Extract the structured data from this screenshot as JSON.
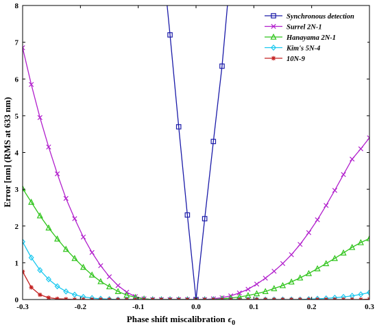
{
  "chart_data": {
    "type": "line",
    "title": "",
    "xlabel": "Phase shift miscalibration",
    "xlabel_symbol": "ϵ",
    "xlabel_subscript": "0",
    "ylabel": "Error [nm] (RMS at 633 nm)",
    "xlim": [
      -0.3,
      0.3
    ],
    "ylim": [
      0,
      8
    ],
    "x_ticks": [
      -0.3,
      -0.2,
      -0.1,
      0,
      0.1,
      0.2,
      0.3
    ],
    "x_tick_labels": [
      "-0.3",
      "-0.2",
      "-0.1",
      "0.0",
      "0.1",
      "0.2",
      "0.3"
    ],
    "y_ticks": [
      0,
      1,
      2,
      3,
      4,
      5,
      6,
      7,
      8
    ],
    "y_tick_labels": [
      "0",
      "1",
      "2",
      "3",
      "4",
      "5",
      "6",
      "7",
      "8"
    ],
    "grid": false,
    "legend_position": "top-right",
    "series": [
      {
        "name": "Synchronous detection",
        "color": "#1a1aa8",
        "marker": "square",
        "x": [
          -0.06,
          -0.045,
          -0.03,
          -0.015,
          0.0,
          0.015,
          0.03,
          0.045,
          0.06
        ],
        "y": [
          9.6,
          7.2,
          4.7,
          2.3,
          0.0,
          2.2,
          4.3,
          6.35,
          9.0
        ],
        "marker_x": [
          -0.045,
          -0.03,
          -0.015,
          0.0,
          0.015,
          0.03,
          0.045
        ]
      },
      {
        "name": "Surrel 2N-1",
        "color": "#b11ecc",
        "marker": "x",
        "x": [
          -0.3,
          -0.285,
          -0.27,
          -0.255,
          -0.24,
          -0.225,
          -0.21,
          -0.195,
          -0.18,
          -0.165,
          -0.15,
          -0.135,
          -0.12,
          -0.105,
          -0.09,
          -0.075,
          -0.06,
          -0.045,
          -0.03,
          -0.015,
          0.0,
          0.015,
          0.03,
          0.045,
          0.06,
          0.075,
          0.09,
          0.105,
          0.12,
          0.135,
          0.15,
          0.165,
          0.18,
          0.195,
          0.21,
          0.225,
          0.24,
          0.255,
          0.27,
          0.285,
          0.3
        ],
        "y": [
          6.85,
          5.85,
          4.95,
          4.15,
          3.42,
          2.75,
          2.2,
          1.7,
          1.28,
          0.92,
          0.62,
          0.38,
          0.2,
          0.08,
          0.02,
          0.0,
          0.0,
          0.0,
          0.0,
          0.0,
          0.0,
          0.0,
          0.02,
          0.05,
          0.1,
          0.18,
          0.28,
          0.42,
          0.58,
          0.77,
          0.98,
          1.22,
          1.5,
          1.82,
          2.17,
          2.56,
          2.97,
          3.4,
          3.82,
          4.1,
          4.4
        ]
      },
      {
        "name": "Hanayama 2N-1",
        "color": "#2fc41b",
        "marker": "triangle",
        "x": [
          -0.3,
          -0.285,
          -0.27,
          -0.255,
          -0.24,
          -0.225,
          -0.21,
          -0.195,
          -0.18,
          -0.165,
          -0.15,
          -0.135,
          -0.12,
          -0.105,
          -0.09,
          -0.075,
          -0.06,
          -0.045,
          -0.03,
          -0.015,
          0.0,
          0.015,
          0.03,
          0.045,
          0.06,
          0.075,
          0.09,
          0.105,
          0.12,
          0.135,
          0.15,
          0.165,
          0.18,
          0.195,
          0.21,
          0.225,
          0.24,
          0.255,
          0.27,
          0.285,
          0.3
        ],
        "y": [
          3.02,
          2.65,
          2.28,
          1.95,
          1.65,
          1.37,
          1.12,
          0.88,
          0.67,
          0.49,
          0.35,
          0.22,
          0.12,
          0.06,
          0.02,
          0.0,
          0.0,
          0.0,
          0.0,
          0.0,
          0.0,
          0.0,
          0.0,
          0.02,
          0.04,
          0.07,
          0.11,
          0.16,
          0.22,
          0.3,
          0.38,
          0.48,
          0.59,
          0.71,
          0.84,
          0.98,
          1.12,
          1.27,
          1.42,
          1.55,
          1.66
        ]
      },
      {
        "name": "Kim's 5N-4",
        "color": "#19c8ef",
        "marker": "diamond",
        "x": [
          -0.3,
          -0.285,
          -0.27,
          -0.255,
          -0.24,
          -0.225,
          -0.21,
          -0.195,
          -0.18,
          -0.165,
          -0.15,
          -0.135,
          -0.12,
          -0.105,
          -0.09,
          -0.075,
          -0.06,
          -0.045,
          -0.03,
          -0.015,
          0.0,
          0.015,
          0.03,
          0.045,
          0.06,
          0.075,
          0.09,
          0.105,
          0.12,
          0.135,
          0.15,
          0.165,
          0.18,
          0.195,
          0.21,
          0.225,
          0.24,
          0.255,
          0.27,
          0.285,
          0.3
        ],
        "y": [
          1.57,
          1.14,
          0.8,
          0.55,
          0.36,
          0.22,
          0.13,
          0.07,
          0.04,
          0.02,
          0.01,
          0.0,
          0.0,
          0.0,
          0.0,
          0.0,
          0.0,
          0.0,
          0.0,
          0.0,
          0.0,
          0.0,
          0.0,
          0.0,
          0.0,
          0.0,
          0.0,
          0.0,
          0.0,
          0.0,
          0.0,
          0.0,
          0.0,
          0.01,
          0.02,
          0.03,
          0.05,
          0.07,
          0.1,
          0.14,
          0.19
        ]
      },
      {
        "name": "10N-9",
        "color": "#c42222",
        "marker": "asterisk",
        "x": [
          -0.3,
          -0.285,
          -0.27,
          -0.255,
          -0.24,
          -0.225,
          -0.21,
          -0.195,
          -0.18,
          -0.165,
          -0.15,
          -0.135,
          -0.12,
          -0.105,
          -0.09,
          -0.075,
          -0.06,
          -0.045,
          -0.03,
          -0.015,
          0.0,
          0.015,
          0.03,
          0.045,
          0.06,
          0.075,
          0.09,
          0.105,
          0.12,
          0.135,
          0.15,
          0.165,
          0.18,
          0.195,
          0.21,
          0.225,
          0.24,
          0.255,
          0.27,
          0.285,
          0.3
        ],
        "y": [
          0.76,
          0.33,
          0.13,
          0.05,
          0.02,
          0.01,
          0.0,
          0.0,
          0.0,
          0.0,
          0.0,
          0.0,
          0.0,
          0.0,
          0.0,
          0.0,
          0.0,
          0.0,
          0.0,
          0.0,
          0.0,
          0.0,
          0.0,
          0.0,
          0.0,
          0.0,
          0.0,
          0.0,
          0.0,
          0.0,
          0.0,
          0.0,
          0.0,
          0.0,
          0.0,
          0.0,
          0.0,
          0.0,
          0.0,
          0.0,
          0.01
        ]
      }
    ]
  }
}
